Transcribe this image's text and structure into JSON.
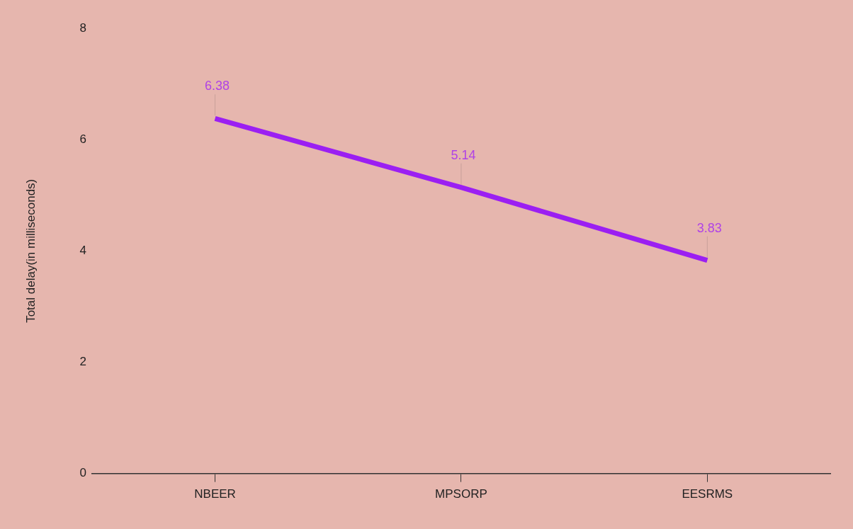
{
  "chart_data": {
    "type": "line",
    "ylabel": "Total delay(in milliseconds)",
    "categories": [
      "NBEER",
      "MPSORP",
      "EESRMS"
    ],
    "series": [
      {
        "color": "#9b1ff2",
        "values": [
          6.38,
          5.14,
          3.83
        ]
      }
    ],
    "ylim": [
      0,
      8
    ],
    "yticks": [
      0,
      2,
      4,
      6,
      8
    ],
    "grid": false,
    "legend": false,
    "marker": "none",
    "line_style": "solid",
    "data_labels": true
  }
}
